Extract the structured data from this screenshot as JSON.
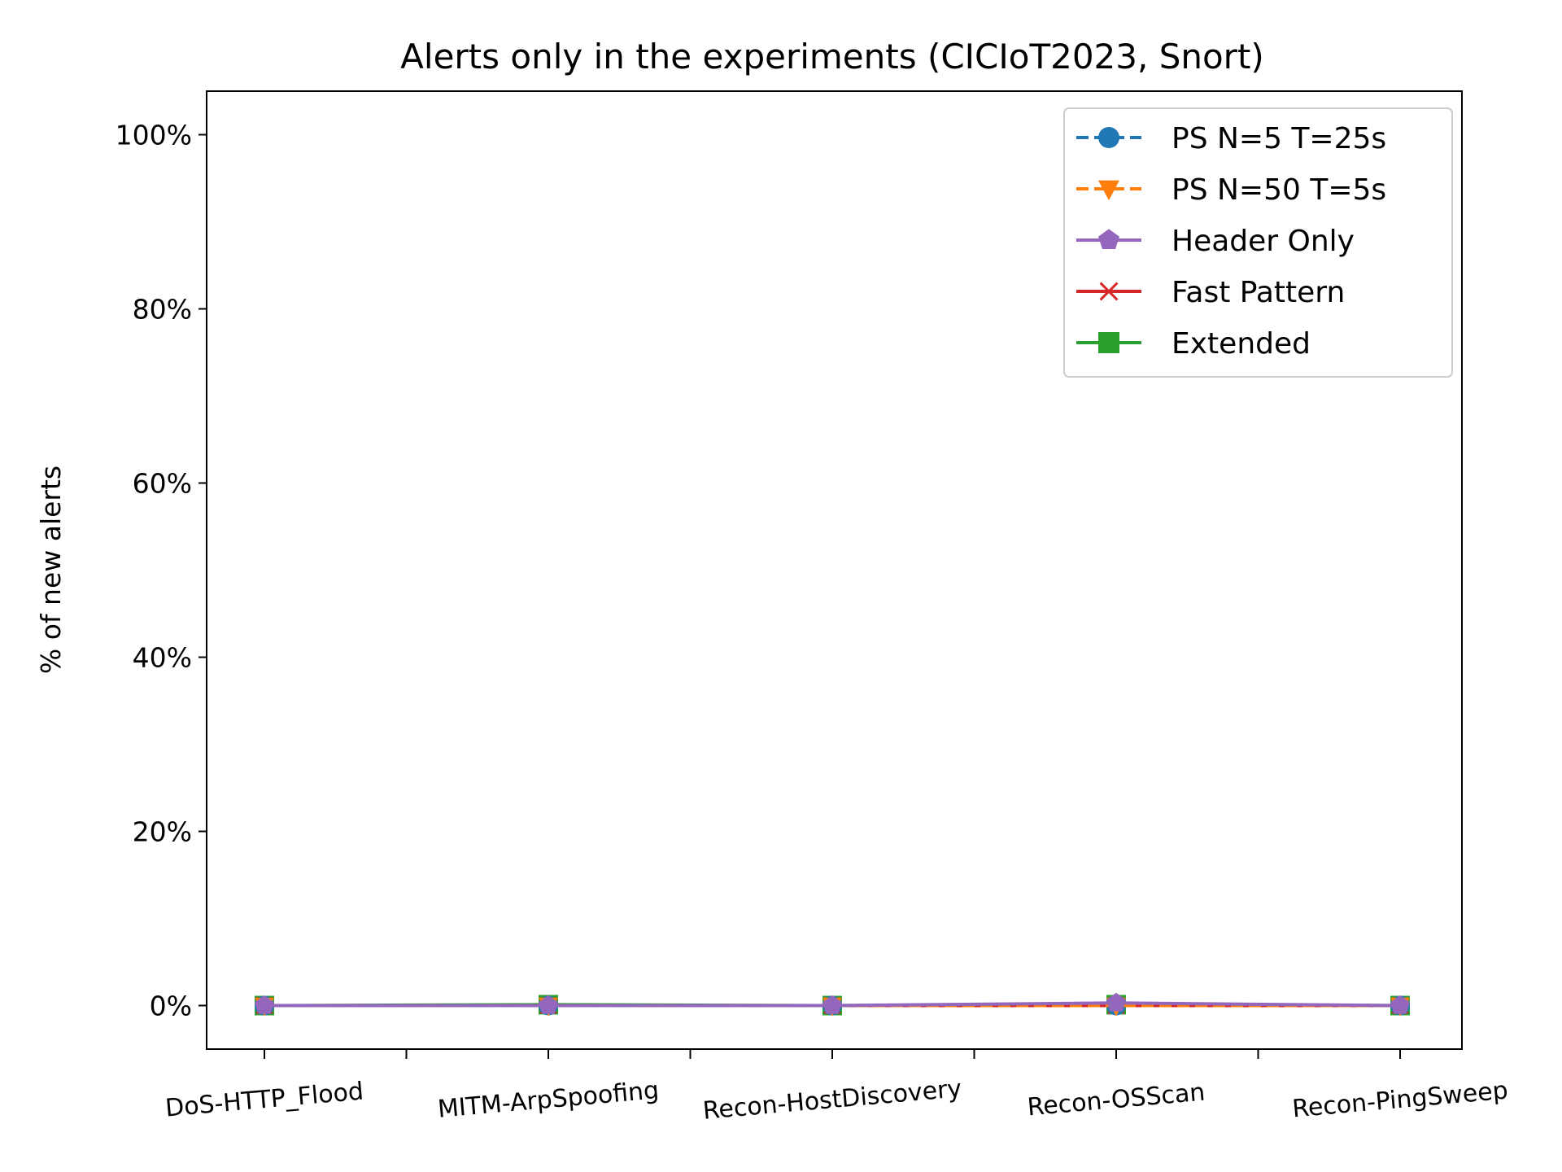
{
  "chart_data": {
    "type": "line",
    "title": "Alerts only in the experiments (CICIoT2023, Snort)",
    "xlabel": "",
    "ylabel": "% of new alerts",
    "categories": [
      "DoS-HTTP_Flood",
      "MITM-ArpSpoofing",
      "Recon-HostDiscovery",
      "Recon-OSScan",
      "Recon-PingSweep"
    ],
    "yticks": [
      0,
      20,
      40,
      60,
      80,
      100
    ],
    "ytick_labels": [
      "0%",
      "20%",
      "40%",
      "60%",
      "80%",
      "100%"
    ],
    "ylim": [
      -5,
      105
    ],
    "grid": false,
    "legend_position": "top-right",
    "series": [
      {
        "name": "PS N=5 T=25s",
        "values": [
          0,
          0,
          0,
          0,
          0
        ],
        "color": "#1f77b4",
        "marker": "circle",
        "linestyle": "dashed"
      },
      {
        "name": "PS N=50 T=5s",
        "values": [
          0,
          0,
          0,
          0,
          0
        ],
        "color": "#ff7f0e",
        "marker": "triangle-down",
        "linestyle": "dashed"
      },
      {
        "name": "Header Only",
        "values": [
          0,
          0,
          0,
          0.3,
          0
        ],
        "color": "#9467bd",
        "marker": "pentagon",
        "linestyle": "solid"
      },
      {
        "name": "Fast Pattern",
        "values": [
          0,
          0,
          0,
          0,
          0
        ],
        "color": "#d62728",
        "marker": "x",
        "linestyle": "solid"
      },
      {
        "name": "Extended",
        "values": [
          0,
          0.1,
          0,
          0.1,
          0
        ],
        "color": "#2ca02c",
        "marker": "square",
        "linestyle": "solid"
      }
    ]
  }
}
